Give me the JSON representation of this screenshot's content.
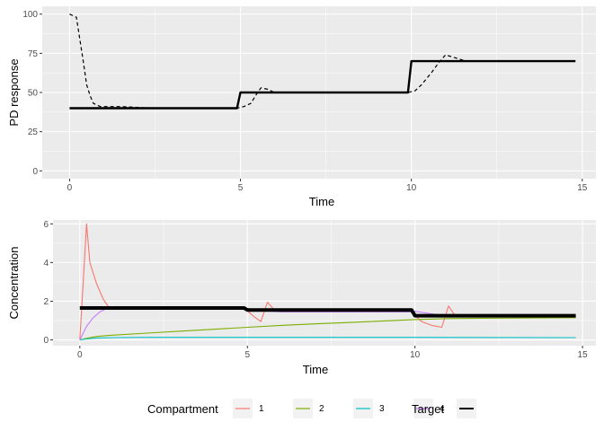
{
  "chart_data": [
    {
      "type": "line",
      "xlabel": "Time",
      "ylabel": "PD response",
      "xlim": [
        -0.8,
        15.4
      ],
      "ylim": [
        -5,
        105
      ],
      "xticks": [
        0,
        5,
        10,
        15
      ],
      "yticks": [
        0,
        25,
        50,
        75,
        100
      ],
      "grid": true,
      "series": [
        {
          "name": "PD response",
          "style": "dashed",
          "color": "#000000",
          "x": [
            0,
            0.2,
            0.4,
            0.5,
            0.6,
            0.7,
            0.9,
            1.2,
            1.5,
            2.0,
            2.4,
            4.9,
            5.0,
            5.1,
            5.3,
            5.5,
            5.6,
            5.8,
            6.0,
            9.9,
            10.0,
            10.1,
            10.3,
            10.6,
            10.8,
            11.0,
            11.3,
            11.6,
            14.8
          ],
          "y": [
            100,
            98,
            70,
            55,
            48,
            43,
            41,
            41,
            41,
            40.5,
            40,
            40,
            40.5,
            41,
            43,
            50,
            53,
            52,
            50,
            50,
            50.5,
            51,
            55,
            63,
            69,
            74,
            72,
            70,
            70
          ]
        },
        {
          "name": "Target",
          "style": "solid",
          "color": "#000000",
          "x": [
            0,
            4.9,
            5.0,
            9.9,
            10.0,
            14.8
          ],
          "y": [
            40,
            40,
            50,
            50,
            70,
            70
          ]
        }
      ]
    },
    {
      "type": "line",
      "xlabel": "Time",
      "ylabel": "Concentration",
      "xlim": [
        -0.8,
        15.4
      ],
      "ylim": [
        -0.3,
        6.2
      ],
      "xticks": [
        0,
        5,
        10,
        15
      ],
      "yticks": [
        0,
        2,
        4,
        6
      ],
      "grid": true,
      "series": [
        {
          "name": "1",
          "color": "#F8766D",
          "x": [
            0,
            0.1,
            0.2,
            0.3,
            0.5,
            0.7,
            0.9,
            1.2,
            2.0,
            4.9,
            5.0,
            5.2,
            5.4,
            5.6,
            5.8,
            6.0,
            9.9,
            10.0,
            10.2,
            10.5,
            10.8,
            11.0,
            11.2,
            11.5,
            14.8
          ],
          "y": [
            0,
            3.0,
            6.0,
            4.0,
            2.9,
            2.1,
            1.6,
            1.65,
            1.65,
            1.65,
            1.5,
            1.2,
            0.95,
            1.95,
            1.55,
            1.5,
            1.5,
            1.25,
            0.95,
            0.75,
            0.65,
            1.75,
            1.25,
            1.2,
            1.2
          ]
        },
        {
          "name": "2",
          "color": "#7CAE00",
          "x": [
            0,
            0.2,
            0.5,
            1.0,
            2.0,
            3.0,
            4.0,
            5.0,
            6.0,
            7.0,
            8.0,
            9.0,
            10.0,
            11.0,
            12.0,
            13.0,
            14.8
          ],
          "y": [
            0,
            0.08,
            0.18,
            0.25,
            0.35,
            0.45,
            0.55,
            0.65,
            0.75,
            0.83,
            0.9,
            0.97,
            1.05,
            1.1,
            1.12,
            1.13,
            1.15
          ]
        },
        {
          "name": "3",
          "color": "#00BFC4",
          "x": [
            0,
            0.2,
            0.5,
            1.0,
            2.0,
            5.0,
            10.0,
            14.8
          ],
          "y": [
            0,
            0.05,
            0.1,
            0.12,
            0.13,
            0.13,
            0.13,
            0.12
          ]
        },
        {
          "name": "4",
          "color": "#C77CFF",
          "x": [
            0,
            0.1,
            0.2,
            0.4,
            0.6,
            0.8,
            1.0,
            2.0,
            4.9,
            5.0,
            5.5,
            6.0,
            9.9,
            10.0,
            10.5,
            11.0,
            11.5,
            14.8
          ],
          "y": [
            0,
            0.35,
            0.7,
            1.15,
            1.45,
            1.62,
            1.7,
            1.72,
            1.72,
            1.62,
            1.5,
            1.45,
            1.45,
            1.48,
            1.35,
            1.22,
            1.2,
            1.2
          ]
        },
        {
          "name": "Target",
          "color": "#000000",
          "style": "thick",
          "x": [
            0,
            4.9,
            5.0,
            9.9,
            10.0,
            14.8
          ],
          "y": [
            1.65,
            1.65,
            1.55,
            1.55,
            1.25,
            1.25
          ]
        }
      ]
    }
  ],
  "legend": {
    "placement": "bottom",
    "compartment_title": "Compartment",
    "compartment_items": [
      {
        "label": "1",
        "color": "#F8766D"
      },
      {
        "label": "2",
        "color": "#7CAE00"
      },
      {
        "label": "3",
        "color": "#00BFC4"
      },
      {
        "label": "4",
        "color": "#C77CFF"
      }
    ],
    "target_title": "Target",
    "target_color": "#000000"
  }
}
